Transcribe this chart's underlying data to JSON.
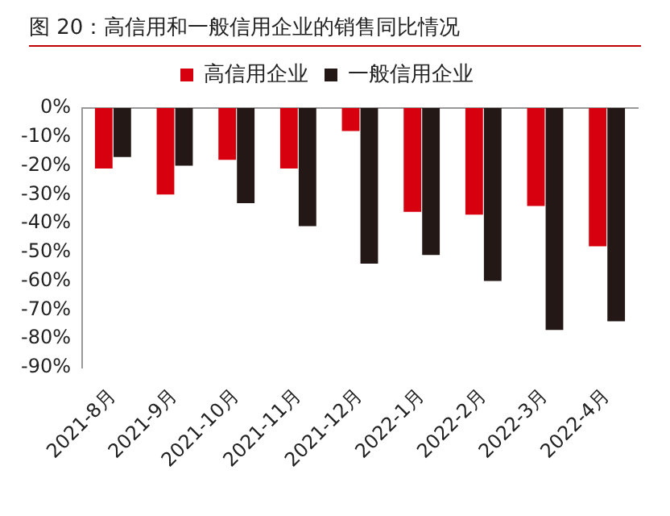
{
  "chart_data": {
    "type": "bar",
    "title": "图 20：高信用和一般信用企业的销售同比情况",
    "categories": [
      "2021-8月",
      "2021-9月",
      "2021-10月",
      "2021-11月",
      "2021-12月",
      "2022-1月",
      "2022-2月",
      "2022-3月",
      "2022-4月"
    ],
    "series": [
      {
        "name": "高信用企业",
        "color": "#d7000f",
        "values": [
          -21,
          -30,
          -18,
          -21,
          -8,
          -36,
          -37,
          -34,
          -48
        ]
      },
      {
        "name": "一般信用企业",
        "color": "#231815",
        "values": [
          -17,
          -20,
          -33,
          -41,
          -54,
          -51,
          -60,
          -77,
          -74
        ]
      }
    ],
    "ylim": [
      -90,
      0
    ],
    "yticks": [
      {
        "value": 0,
        "label": "0%"
      },
      {
        "value": -10,
        "label": "-10%"
      },
      {
        "value": -20,
        "label": "-20%"
      },
      {
        "value": -30,
        "label": "-30%"
      },
      {
        "value": -40,
        "label": "-40%"
      },
      {
        "value": -50,
        "label": "-50%"
      },
      {
        "value": -60,
        "label": "-60%"
      },
      {
        "value": -70,
        "label": "-70%"
      },
      {
        "value": -80,
        "label": "-80%"
      },
      {
        "value": -90,
        "label": "-90%"
      }
    ],
    "grid": false,
    "legend": "top"
  }
}
